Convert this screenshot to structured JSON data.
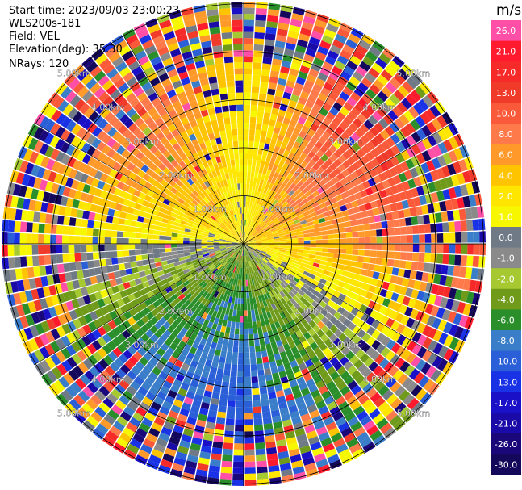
{
  "header": {
    "start_time": "Start time: 2023/09/03 23:00:23",
    "instrument": "WLS200s-181",
    "field": "Field: VEL",
    "elevation": "Elevation(deg): 35.30",
    "nrays": "NRays: 120"
  },
  "chart_data": {
    "type": "heatmap",
    "projection": "polar-ppi",
    "field": "VEL",
    "units": "m/s",
    "n_rays": 120,
    "elevation_deg": 35.3,
    "range_rings_km": [
      1.0,
      2.0,
      3.0,
      4.0,
      5.0
    ],
    "range_ring_labels": [
      "1.00km",
      "2.00km",
      "3.00km",
      "4.00km",
      "5.00km"
    ],
    "max_range_km": 5.0,
    "radial_lines_deg": [
      0,
      30,
      60,
      90,
      120,
      150,
      180,
      210,
      240,
      270,
      300,
      330
    ],
    "colorbar": {
      "title": "m/s",
      "tick_labels": [
        "26.0",
        "21.0",
        "17.0",
        "13.0",
        "10.0",
        "8.0",
        "6.0",
        "4.0",
        "2.0",
        "1.0",
        "0.0",
        "-1.0",
        "-2.0",
        "-4.0",
        "-6.0",
        "-8.0",
        "-10.0",
        "-13.0",
        "-17.0",
        "-21.0",
        "-26.0",
        "-30.0"
      ],
      "colors": [
        "#ff4fa6",
        "#ff1a2e",
        "#f72a2a",
        "#f03a2a",
        "#fa5a3a",
        "#ff7a4a",
        "#ff9a2a",
        "#ffc400",
        "#ffe600",
        "#f7f700",
        "#707a86",
        "#8a8a8a",
        "#a6c830",
        "#6f9a1a",
        "#2a8f2a",
        "#3a7dc8",
        "#2a5fd8",
        "#1a32e6",
        "#1a10c8",
        "#1a0aa8",
        "#1a087a",
        "#14085a"
      ]
    },
    "sector_trends": [
      {
        "azimuth_deg": 0,
        "velocity_ms": 3
      },
      {
        "azimuth_deg": 45,
        "velocity_ms": 12
      },
      {
        "azimuth_deg": 90,
        "velocity_ms": 8
      },
      {
        "azimuth_deg": 135,
        "velocity_ms": -2
      },
      {
        "azimuth_deg": 180,
        "velocity_ms": -9
      },
      {
        "azimuth_deg": 225,
        "velocity_ms": -6
      },
      {
        "azimuth_deg": 270,
        "velocity_ms": 2
      },
      {
        "azimuth_deg": 315,
        "velocity_ms": 9
      }
    ]
  }
}
